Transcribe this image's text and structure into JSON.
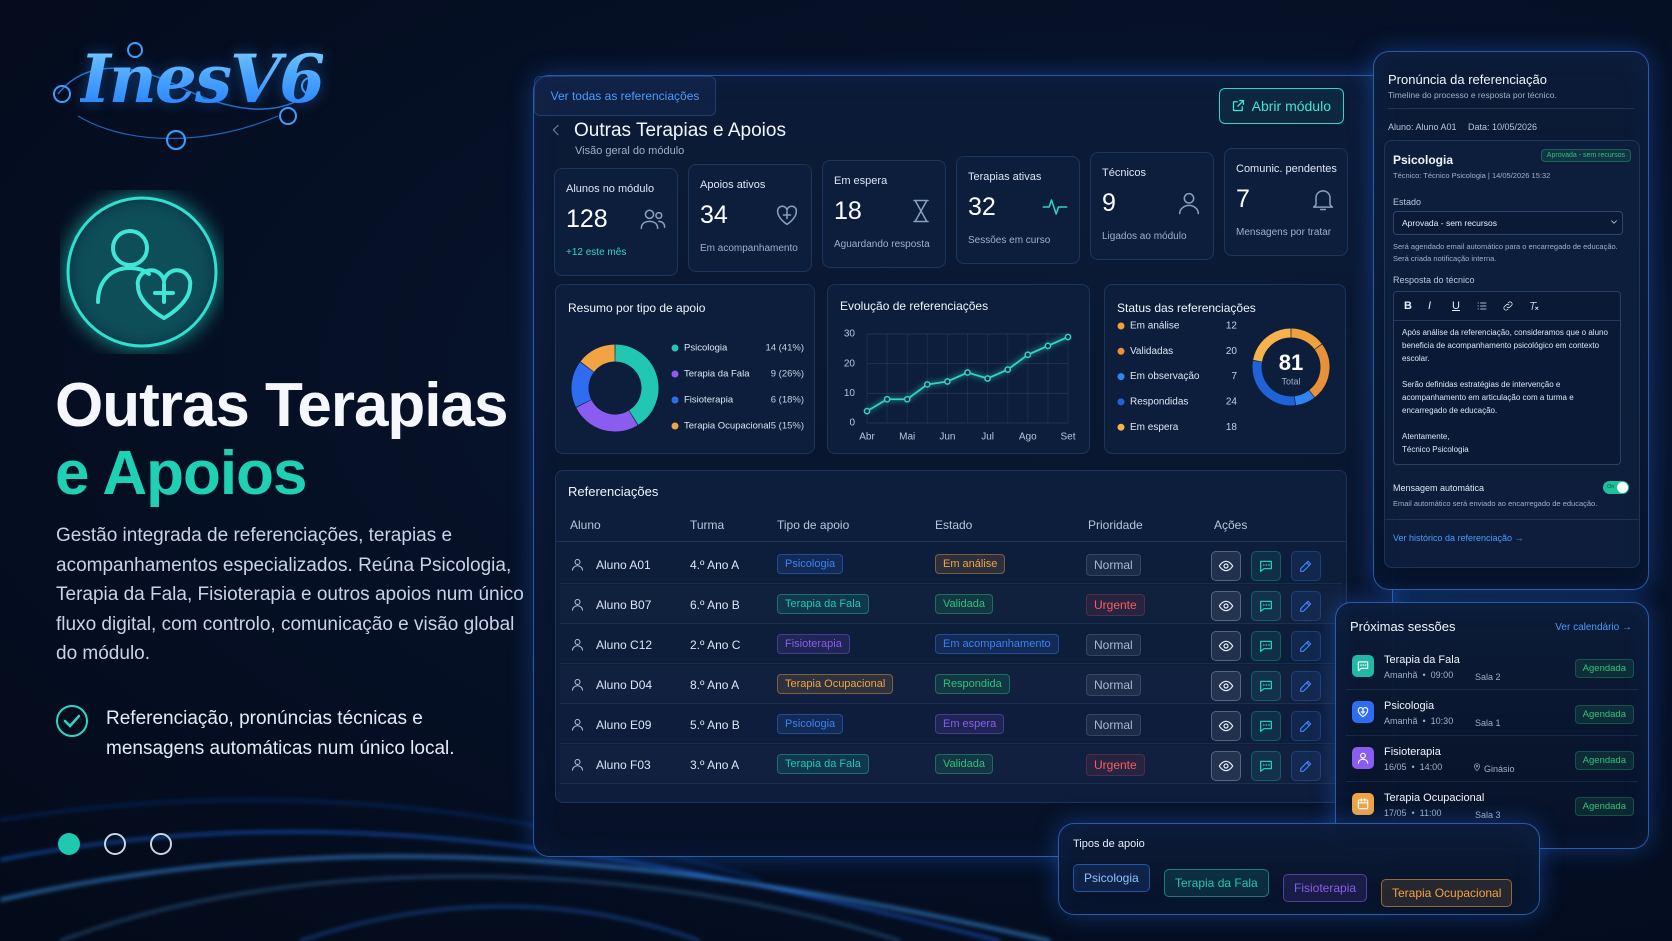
{
  "logo": "InesV6",
  "hero": {
    "title_line1": "Outras Terapias",
    "title_line2": "e Apoios",
    "description": "Gestão integrada de referenciações, terapias e acompanhamentos especializados. Reúna Psicologia, Terapia da Fala, Fisioterapia e outros apoios num único fluxo digital, com controlo, comunicação e visão global do módulo.",
    "feature": "Referenciação, pronúncias técnicas e mensagens automáticas num único local."
  },
  "dashboard": {
    "title": "Outras Terapias e Apoios",
    "subtitle": "Visão geral do módulo",
    "open_button": "Abrir módulo",
    "kpis": [
      {
        "label": "Alunos no módulo",
        "value": 128,
        "note": "+12 este mês"
      },
      {
        "label": "Apoios ativos",
        "value": 34,
        "note": "Em acompanhamento"
      },
      {
        "label": "Em espera",
        "value": 18,
        "note": "Aguardando resposta"
      },
      {
        "label": "Terapias ativas",
        "value": 32,
        "note": "Sessões em curso"
      },
      {
        "label": "Técnicos",
        "value": 9,
        "note": "Ligados ao módulo"
      },
      {
        "label": "Comunic. pendentes",
        "value": 7,
        "note": "Mensagens por tratar"
      }
    ],
    "summary": {
      "type": "pie",
      "title": "Resumo por tipo de apoio",
      "categories": [
        "Psicologia",
        "Terapia da Fala",
        "Fisioterapia",
        "Terapia Ocupacional"
      ],
      "values": [
        14,
        9,
        6,
        5
      ],
      "value_labels": [
        "14 (41%)",
        "9 (26%)",
        "6 (18%)",
        "5 (15%)"
      ],
      "colors": [
        "#22c7b4",
        "#8b5cf0",
        "#2f6cf0",
        "#f2a443"
      ]
    },
    "evolution": {
      "type": "line",
      "title": "Evolução de referenciações",
      "categories": [
        "Abr",
        null,
        "Mai",
        null,
        "Jun",
        null,
        "Jul",
        null,
        "Ago",
        null,
        "Set"
      ],
      "values": [
        4,
        8,
        8,
        13,
        14,
        17,
        15,
        18,
        23,
        26,
        29
      ],
      "ylim": [
        0,
        30
      ],
      "yticks": [
        0,
        10,
        20,
        30
      ],
      "color": "#2fd6c4",
      "grid": true
    },
    "status": {
      "type": "pie",
      "title": "Status das referenciações",
      "categories": [
        "Em análise",
        "Validadas",
        "Em observação",
        "Respondidas",
        "Em espera"
      ],
      "values": [
        12,
        20,
        7,
        24,
        18
      ],
      "colors": [
        "#f0a03c",
        "#e8903a",
        "#2f86f0",
        "#1f63d6",
        "#f6b24c"
      ],
      "total": 81,
      "total_label": "Total"
    },
    "table": {
      "title": "Referenciações",
      "columns": [
        "Aluno",
        "Turma",
        "Tipo de apoio",
        "Estado",
        "Prioridade",
        "Ações"
      ],
      "rows": [
        [
          "Aluno A01",
          "4.º Ano A",
          "Psicologia",
          "Em análise",
          "Normal"
        ],
        [
          "Aluno B07",
          "6.º Ano B",
          "Terapia da Fala",
          "Validada",
          "Urgente"
        ],
        [
          "Aluno C12",
          "2.º Ano C",
          "Fisioterapia",
          "Em acompanhamento",
          "Normal"
        ],
        [
          "Aluno D04",
          "8.º Ano A",
          "Terapia Ocupacional",
          "Respondida",
          "Normal"
        ],
        [
          "Aluno E09",
          "5.º Ano B",
          "Psicologia",
          "Em espera",
          "Normal"
        ],
        [
          "Aluno F03",
          "3.º Ano A",
          "Terapia da Fala",
          "Validada",
          "Urgente"
        ]
      ],
      "type_colors": [
        "#3b82f6",
        "#22c7b4",
        "#8b5cf0",
        "#f2a443",
        "#3b82f6",
        "#22c7b4"
      ],
      "state_colors": [
        "#f2a443",
        "#2fc27a",
        "#3b82f6",
        "#2fc27a",
        "#8b5cf0",
        "#2fc27a"
      ],
      "priority_colors": [
        "#a9b8cf",
        "#ff5a5f",
        "#a9b8cf",
        "#a9b8cf",
        "#a9b8cf",
        "#ff5a5f"
      ]
    },
    "view_all": "Ver todas as referenciações"
  },
  "pronuncia": {
    "title": "Pronúncia da referenciação",
    "subtitle": "Timeline do processo e resposta por técnico.",
    "aluno": "Aluno: Aluno A01",
    "data": "Data: 10/05/2026",
    "service": "Psicologia",
    "badge": "Aprovada - sem recursos",
    "tecnico": "Técnico: Técnico Psicologia | 14/05/2026 15:32",
    "estado_label": "Estado",
    "estado_value": "Aprovada - sem recursos",
    "estado_note": "Será agendado email automático para o encarregado de educação. Será criada notificação interna.",
    "resposta_label": "Resposta do técnico",
    "toolbar": [
      "B",
      "I",
      "U"
    ],
    "resposta": [
      "Após análise da referenciação, consideramos que o aluno beneficia de acompanhamento psicológico em contexto escolar.",
      "Serão definidas estratégias de intervenção e acompanhamento em articulação com a turma e encarregado de educação.",
      "Atentamente,",
      "Técnico Psicologia"
    ],
    "auto_label": "Mensagem automática",
    "auto_toggle": "On",
    "auto_note": "Email automático será enviado ao encarregado de educação.",
    "history_link": "Ver histórico da referenciação →"
  },
  "sessions": {
    "title": "Próximas sessões",
    "link": "Ver calendário →",
    "items": [
      {
        "name": "Terapia da Fala",
        "when": "Amanhã  •  09:00",
        "room": "Sala 2",
        "status": "Agendada",
        "color": "#22b8a6"
      },
      {
        "name": "Psicologia",
        "when": "Amanhã  •  10:30",
        "room": "Sala 1",
        "status": "Agendada",
        "color": "#2f6cf0"
      },
      {
        "name": "Fisioterapia",
        "when": "16/05  •  14:00",
        "room": "Ginásio",
        "status": "Agendada",
        "color": "#8b5cf0"
      },
      {
        "name": "Terapia Ocupacional",
        "when": "17/05  •  11:00",
        "room": "Sala 3",
        "status": "Agendada",
        "color": "#f2a443"
      }
    ]
  },
  "types": {
    "title": "Tipos de apoio",
    "chips": [
      "Psicologia",
      "Terapia da Fala",
      "Fisioterapia",
      "Terapia Ocupacional"
    ],
    "colors": [
      "#3b82f6",
      "#22c7b4",
      "#8b5cf0",
      "#f2a443"
    ]
  }
}
